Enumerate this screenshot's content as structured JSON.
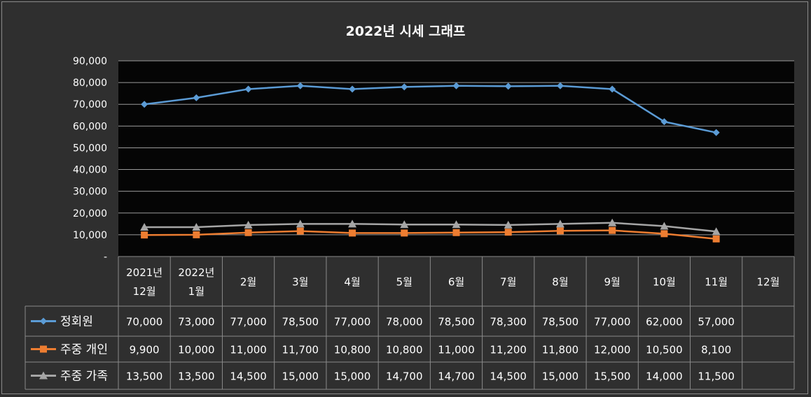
{
  "chart_data": {
    "type": "line",
    "title": "2022년 시세 그래프",
    "categories": [
      [
        "2021년",
        "12월"
      ],
      [
        "2022년",
        "1월"
      ],
      [
        "2월"
      ],
      [
        "3월"
      ],
      [
        "4월"
      ],
      [
        "5월"
      ],
      [
        "6월"
      ],
      [
        "7월"
      ],
      [
        "8월"
      ],
      [
        "9월"
      ],
      [
        "10월"
      ],
      [
        "11월"
      ],
      [
        "12월"
      ]
    ],
    "ylim": [
      0,
      90000
    ],
    "yticks": [
      "-",
      "10,000",
      "20,000",
      "30,000",
      "40,000",
      "50,000",
      "60,000",
      "70,000",
      "80,000",
      "90,000"
    ],
    "grid": true,
    "legend": "data-table",
    "series": [
      {
        "name": "정회원",
        "marker": "diamond",
        "color": "#5b9bd5",
        "values": [
          70000,
          73000,
          77000,
          78500,
          77000,
          78000,
          78500,
          78300,
          78500,
          77000,
          62000,
          57000,
          null
        ],
        "labels": [
          "70,000",
          "73,000",
          "77,000",
          "78,500",
          "77,000",
          "78,000",
          "78,500",
          "78,300",
          "78,500",
          "77,000",
          "62,000",
          "57,000",
          ""
        ]
      },
      {
        "name": "주중 개인",
        "marker": "square",
        "color": "#ed7d31",
        "values": [
          9900,
          10000,
          11000,
          11700,
          10800,
          10800,
          11000,
          11200,
          11800,
          12000,
          10500,
          8100,
          null
        ],
        "labels": [
          "9,900",
          "10,000",
          "11,000",
          "11,700",
          "10,800",
          "10,800",
          "11,000",
          "11,200",
          "11,800",
          "12,000",
          "10,500",
          "8,100",
          ""
        ]
      },
      {
        "name": "주중 가족",
        "marker": "triangle",
        "color": "#a5a5a5",
        "values": [
          13500,
          13500,
          14500,
          15000,
          15000,
          14700,
          14700,
          14500,
          15000,
          15500,
          14000,
          11500,
          null
        ],
        "labels": [
          "13,500",
          "13,500",
          "14,500",
          "15,000",
          "15,000",
          "14,700",
          "14,700",
          "14,500",
          "15,000",
          "15,500",
          "14,000",
          "11,500",
          ""
        ]
      }
    ]
  }
}
